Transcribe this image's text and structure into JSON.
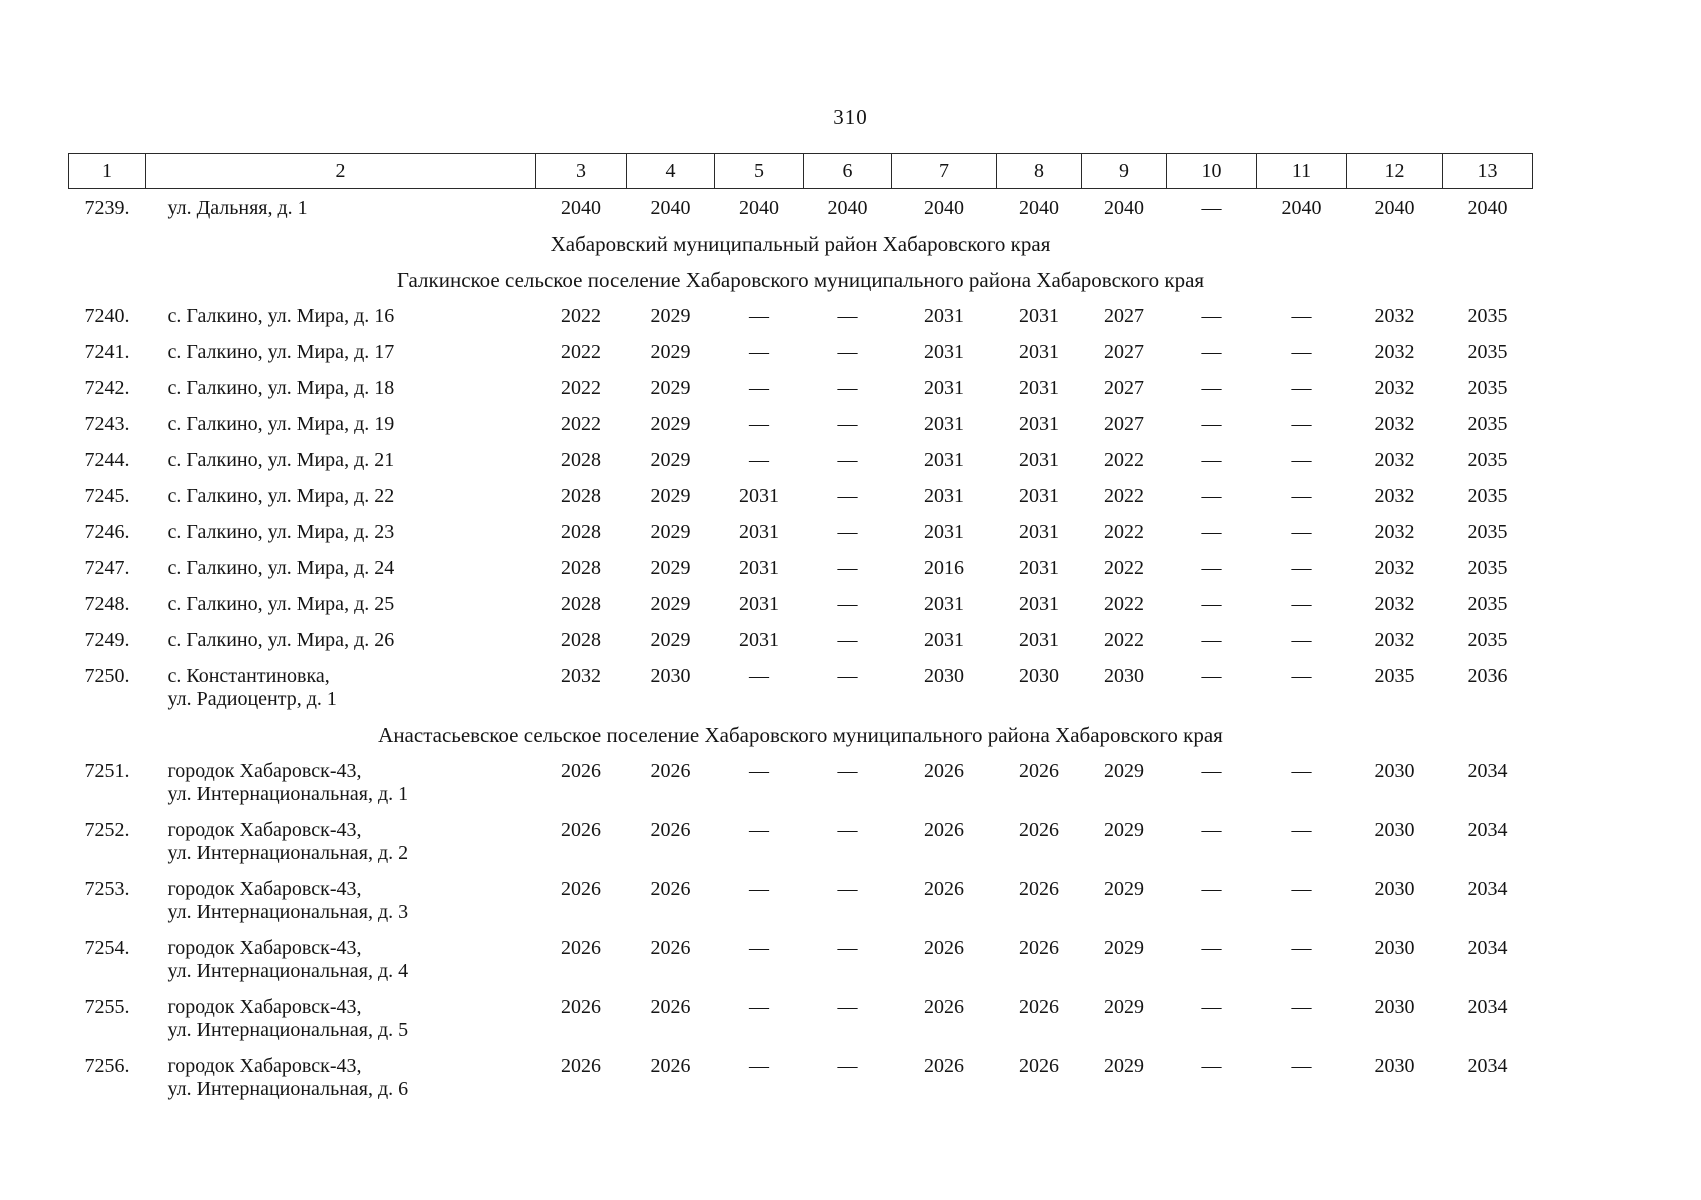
{
  "page": {
    "number": "310"
  },
  "table": {
    "header": [
      "1",
      "2",
      "3",
      "4",
      "5",
      "6",
      "7",
      "8",
      "9",
      "10",
      "11",
      "12",
      "13"
    ],
    "dash": "—",
    "rows": [
      {
        "type": "data",
        "num": "7239.",
        "address": [
          "ул. Дальняя, д. 1"
        ],
        "values": [
          "2040",
          "2040",
          "2040",
          "2040",
          "2040",
          "2040",
          "2040",
          "—",
          "2040",
          "2040",
          "2040"
        ]
      },
      {
        "type": "section",
        "text": "Хабаровский муниципальный район Хабаровского края"
      },
      {
        "type": "section",
        "text": "Галкинское сельское поселение Хабаровского муниципального района Хабаровского края"
      },
      {
        "type": "data",
        "num": "7240.",
        "address": [
          "с. Галкино, ул. Мира, д. 16"
        ],
        "values": [
          "2022",
          "2029",
          "—",
          "—",
          "2031",
          "2031",
          "2027",
          "—",
          "—",
          "2032",
          "2035"
        ]
      },
      {
        "type": "data",
        "num": "7241.",
        "address": [
          "с. Галкино, ул. Мира, д. 17"
        ],
        "values": [
          "2022",
          "2029",
          "—",
          "—",
          "2031",
          "2031",
          "2027",
          "—",
          "—",
          "2032",
          "2035"
        ]
      },
      {
        "type": "data",
        "num": "7242.",
        "address": [
          "с. Галкино, ул. Мира, д. 18"
        ],
        "values": [
          "2022",
          "2029",
          "—",
          "—",
          "2031",
          "2031",
          "2027",
          "—",
          "—",
          "2032",
          "2035"
        ]
      },
      {
        "type": "data",
        "num": "7243.",
        "address": [
          "с. Галкино, ул. Мира, д. 19"
        ],
        "values": [
          "2022",
          "2029",
          "—",
          "—",
          "2031",
          "2031",
          "2027",
          "—",
          "—",
          "2032",
          "2035"
        ]
      },
      {
        "type": "data",
        "num": "7244.",
        "address": [
          "с. Галкино, ул. Мира, д. 21"
        ],
        "values": [
          "2028",
          "2029",
          "—",
          "—",
          "2031",
          "2031",
          "2022",
          "—",
          "—",
          "2032",
          "2035"
        ]
      },
      {
        "type": "data",
        "num": "7245.",
        "address": [
          "с. Галкино, ул. Мира, д. 22"
        ],
        "values": [
          "2028",
          "2029",
          "2031",
          "—",
          "2031",
          "2031",
          "2022",
          "—",
          "—",
          "2032",
          "2035"
        ]
      },
      {
        "type": "data",
        "num": "7246.",
        "address": [
          "с. Галкино, ул. Мира, д. 23"
        ],
        "values": [
          "2028",
          "2029",
          "2031",
          "—",
          "2031",
          "2031",
          "2022",
          "—",
          "—",
          "2032",
          "2035"
        ]
      },
      {
        "type": "data",
        "num": "7247.",
        "address": [
          "с. Галкино, ул. Мира, д. 24"
        ],
        "values": [
          "2028",
          "2029",
          "2031",
          "—",
          "2016",
          "2031",
          "2022",
          "—",
          "—",
          "2032",
          "2035"
        ]
      },
      {
        "type": "data",
        "num": "7248.",
        "address": [
          "с. Галкино, ул. Мира, д. 25"
        ],
        "values": [
          "2028",
          "2029",
          "2031",
          "—",
          "2031",
          "2031",
          "2022",
          "—",
          "—",
          "2032",
          "2035"
        ]
      },
      {
        "type": "data",
        "num": "7249.",
        "address": [
          "с. Галкино, ул. Мира, д. 26"
        ],
        "values": [
          "2028",
          "2029",
          "2031",
          "—",
          "2031",
          "2031",
          "2022",
          "—",
          "—",
          "2032",
          "2035"
        ]
      },
      {
        "type": "data",
        "num": "7250.",
        "address": [
          "с. Константиновка,",
          "ул. Радиоцентр, д. 1"
        ],
        "values": [
          "2032",
          "2030",
          "—",
          "—",
          "2030",
          "2030",
          "2030",
          "—",
          "—",
          "2035",
          "2036"
        ]
      },
      {
        "type": "section",
        "text": "Анастасьевское сельское поселение Хабаровского муниципального района Хабаровского края"
      },
      {
        "type": "data",
        "num": "7251.",
        "address": [
          "городок Хабаровск-43,",
          "ул. Интернациональная, д. 1"
        ],
        "values": [
          "2026",
          "2026",
          "—",
          "—",
          "2026",
          "2026",
          "2029",
          "—",
          "—",
          "2030",
          "2034"
        ]
      },
      {
        "type": "data",
        "num": "7252.",
        "address": [
          "городок Хабаровск-43,",
          "ул. Интернациональная, д. 2"
        ],
        "values": [
          "2026",
          "2026",
          "—",
          "—",
          "2026",
          "2026",
          "2029",
          "—",
          "—",
          "2030",
          "2034"
        ]
      },
      {
        "type": "data",
        "num": "7253.",
        "address": [
          "городок Хабаровск-43,",
          "ул. Интернациональная, д. 3"
        ],
        "values": [
          "2026",
          "2026",
          "—",
          "—",
          "2026",
          "2026",
          "2029",
          "—",
          "—",
          "2030",
          "2034"
        ]
      },
      {
        "type": "data",
        "num": "7254.",
        "address": [
          "городок Хабаровск-43,",
          "ул. Интернациональная, д. 4"
        ],
        "values": [
          "2026",
          "2026",
          "—",
          "—",
          "2026",
          "2026",
          "2029",
          "—",
          "—",
          "2030",
          "2034"
        ]
      },
      {
        "type": "data",
        "num": "7255.",
        "address": [
          "городок Хабаровск-43,",
          "ул. Интернациональная, д. 5"
        ],
        "values": [
          "2026",
          "2026",
          "—",
          "—",
          "2026",
          "2026",
          "2029",
          "—",
          "—",
          "2030",
          "2034"
        ]
      },
      {
        "type": "data",
        "num": "7256.",
        "address": [
          "городок Хабаровск-43,",
          "ул. Интернациональная, д. 6"
        ],
        "values": [
          "2026",
          "2026",
          "—",
          "—",
          "2026",
          "2026",
          "2029",
          "—",
          "—",
          "2030",
          "2034"
        ]
      }
    ]
  }
}
